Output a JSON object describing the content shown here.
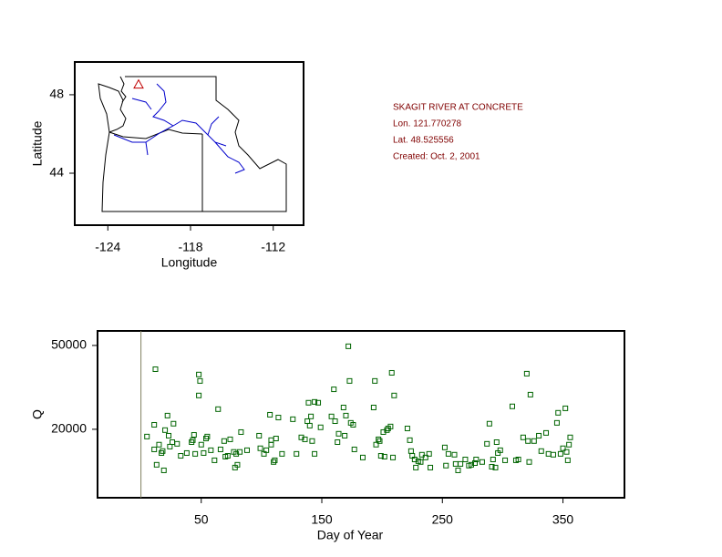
{
  "chart_data": [
    {
      "type": "map",
      "xlabel": "Longitude",
      "ylabel": "Latitude",
      "xlim": [
        -126.4,
        -109.8
      ],
      "ylim": [
        41.35,
        49.67
      ],
      "xticks": [
        -124,
        -118,
        -112
      ],
      "yticks": [
        44,
        48
      ],
      "x": [
        -121.770278
      ],
      "y": [
        48.525556
      ],
      "color": "#c00000",
      "annotations": [
        "SKAGIT RIVER AT CONCRETE",
        "Lon. 121.770278",
        "Lat. 48.525556",
        "Created:   Oct. 2, 2001"
      ],
      "annotation_color": "#800000"
    },
    {
      "type": "scatter",
      "xlabel": "Day of Year",
      "ylabel": "Q",
      "xlim": [
        -36,
        401
      ],
      "ylim": [
        -4500,
        55200
      ],
      "xticks": [
        50,
        150,
        250,
        350
      ],
      "yticks": [
        20000,
        50000
      ],
      "color": "#006400",
      "x": [
        5,
        11,
        11,
        12,
        13,
        15,
        17,
        18,
        19,
        20,
        22,
        23,
        24,
        26,
        27,
        30,
        33,
        38,
        42,
        43,
        44,
        45,
        48,
        48,
        49,
        50,
        52,
        54,
        55,
        58,
        61,
        64,
        66,
        69,
        70,
        72,
        74,
        77,
        78,
        79,
        80,
        82,
        83,
        88,
        98,
        99,
        102,
        104,
        107,
        108,
        108,
        110,
        111,
        112,
        114,
        117,
        126,
        129,
        133,
        136,
        138,
        139,
        140,
        141,
        142,
        144,
        144,
        147,
        149,
        158,
        160,
        161,
        163,
        164,
        168,
        169,
        170,
        172,
        173,
        174,
        176,
        177,
        184,
        193,
        194,
        195,
        197,
        198,
        199,
        201,
        202,
        204,
        205,
        207,
        208,
        209,
        210,
        221,
        223,
        224,
        225,
        227,
        228,
        230,
        232,
        233,
        236,
        239,
        240,
        252,
        253,
        255,
        260,
        261,
        263,
        265,
        269,
        272,
        274,
        277,
        278,
        283,
        287,
        289,
        291,
        292,
        294,
        295,
        296,
        298,
        302,
        308,
        311,
        313,
        317,
        320,
        321,
        322,
        323,
        326,
        330,
        332,
        336,
        338,
        342,
        345,
        346,
        348,
        350,
        352,
        353,
        354,
        355,
        356
      ],
      "y": [
        17400,
        12800,
        21600,
        41500,
        7300,
        14500,
        11500,
        12200,
        5300,
        19700,
        24900,
        17700,
        13800,
        15400,
        22000,
        14800,
        10500,
        11500,
        15400,
        16100,
        18000,
        11200,
        39600,
        32100,
        37300,
        14500,
        11500,
        16700,
        17400,
        12500,
        8900,
        27200,
        12800,
        15800,
        10200,
        10500,
        16400,
        11900,
        6300,
        11200,
        7300,
        11900,
        19000,
        12500,
        17700,
        13200,
        11200,
        12500,
        25200,
        16100,
        14500,
        8300,
        8900,
        16700,
        24200,
        11200,
        23600,
        11200,
        17100,
        16400,
        22900,
        29500,
        21300,
        24600,
        15800,
        11200,
        29800,
        29500,
        20700,
        24600,
        34300,
        22900,
        15400,
        18400,
        27800,
        17700,
        24900,
        49700,
        37300,
        22300,
        21600,
        12800,
        9900,
        27800,
        37300,
        14500,
        16400,
        15800,
        10500,
        19000,
        10200,
        19700,
        20300,
        21000,
        40200,
        9900,
        32100,
        20300,
        16100,
        12200,
        10500,
        9200,
        6300,
        8600,
        8300,
        10900,
        9900,
        11200,
        6300,
        13500,
        7000,
        11200,
        10900,
        7600,
        5300,
        7600,
        9200,
        7000,
        7300,
        7900,
        9200,
        8300,
        14800,
        22000,
        6600,
        9200,
        6300,
        15400,
        11500,
        12500,
        8900,
        28200,
        8900,
        9200,
        17100,
        39900,
        15800,
        8300,
        32400,
        15800,
        17700,
        12200,
        18700,
        11200,
        10900,
        22300,
        25900,
        11200,
        13200,
        27500,
        11900,
        8900,
        14500,
        17100
      ]
    }
  ]
}
